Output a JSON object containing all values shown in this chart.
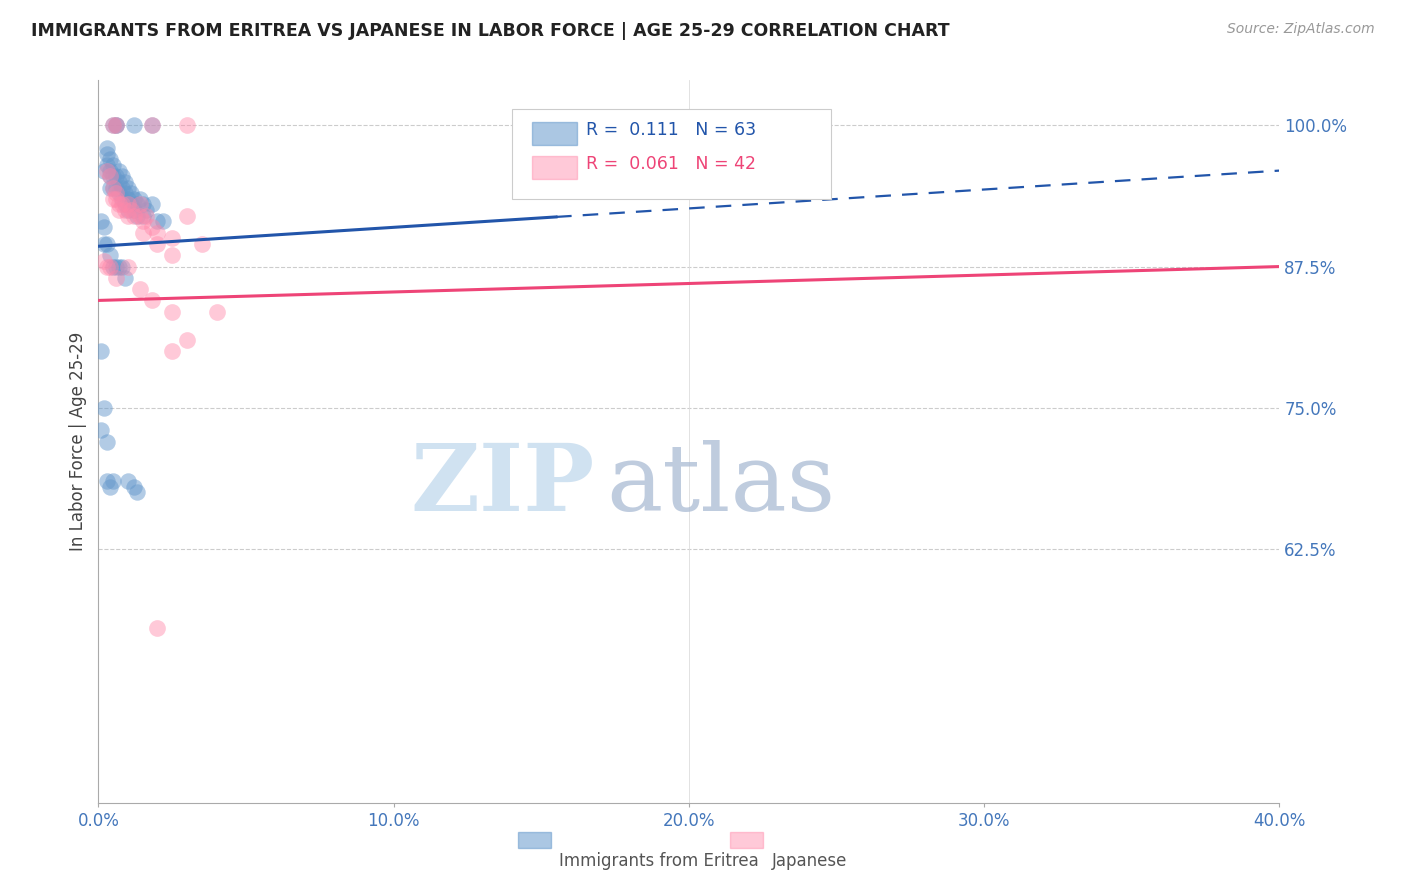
{
  "title": "IMMIGRANTS FROM ERITREA VS JAPANESE IN LABOR FORCE | AGE 25-29 CORRELATION CHART",
  "source": "Source: ZipAtlas.com",
  "ylabel": "In Labor Force | Age 25-29",
  "xlim": [
    0.0,
    0.4
  ],
  "ylim": [
    0.4,
    1.04
  ],
  "yticks": [
    0.625,
    0.75,
    0.875,
    1.0
  ],
  "ytick_labels": [
    "62.5%",
    "75.0%",
    "87.5%",
    "100.0%"
  ],
  "xticks": [
    0.0,
    0.1,
    0.2,
    0.3,
    0.4
  ],
  "xtick_labels": [
    "0.0%",
    "10.0%",
    "20.0%",
    "30.0%",
    "40.0%"
  ],
  "blue_R": 0.111,
  "blue_N": 63,
  "pink_R": 0.061,
  "pink_N": 42,
  "blue_color": "#6699CC",
  "pink_color": "#FF88AA",
  "trend_blue_color": "#2255AA",
  "trend_pink_color": "#EE4477",
  "watermark_zip": "ZIP",
  "watermark_atlas": "atlas",
  "legend_label_blue": "Immigrants from Eritrea",
  "legend_label_pink": "Japanese",
  "blue_trend_x0": 0.0,
  "blue_trend_y0": 0.893,
  "blue_trend_x1": 0.4,
  "blue_trend_y1": 0.96,
  "blue_trend_solid_end": 0.155,
  "pink_trend_x0": 0.0,
  "pink_trend_y0": 0.845,
  "pink_trend_x1": 0.4,
  "pink_trend_y1": 0.875,
  "blue_scatter": [
    [
      0.005,
      1.0
    ],
    [
      0.006,
      1.0
    ],
    [
      0.006,
      1.0
    ],
    [
      0.012,
      1.0
    ],
    [
      0.018,
      1.0
    ],
    [
      0.003,
      0.98
    ],
    [
      0.003,
      0.975
    ],
    [
      0.003,
      0.965
    ],
    [
      0.004,
      0.97
    ],
    [
      0.004,
      0.96
    ],
    [
      0.004,
      0.955
    ],
    [
      0.004,
      0.945
    ],
    [
      0.005,
      0.965
    ],
    [
      0.005,
      0.955
    ],
    [
      0.005,
      0.945
    ],
    [
      0.006,
      0.955
    ],
    [
      0.006,
      0.945
    ],
    [
      0.007,
      0.96
    ],
    [
      0.007,
      0.95
    ],
    [
      0.007,
      0.94
    ],
    [
      0.008,
      0.955
    ],
    [
      0.008,
      0.945
    ],
    [
      0.008,
      0.935
    ],
    [
      0.009,
      0.95
    ],
    [
      0.009,
      0.94
    ],
    [
      0.009,
      0.93
    ],
    [
      0.01,
      0.945
    ],
    [
      0.01,
      0.935
    ],
    [
      0.01,
      0.925
    ],
    [
      0.011,
      0.94
    ],
    [
      0.011,
      0.93
    ],
    [
      0.012,
      0.935
    ],
    [
      0.012,
      0.925
    ],
    [
      0.013,
      0.93
    ],
    [
      0.013,
      0.92
    ],
    [
      0.014,
      0.935
    ],
    [
      0.015,
      0.93
    ],
    [
      0.015,
      0.92
    ],
    [
      0.016,
      0.925
    ],
    [
      0.018,
      0.93
    ],
    [
      0.02,
      0.915
    ],
    [
      0.022,
      0.915
    ],
    [
      0.001,
      0.915
    ],
    [
      0.002,
      0.91
    ],
    [
      0.002,
      0.895
    ],
    [
      0.003,
      0.895
    ],
    [
      0.004,
      0.885
    ],
    [
      0.005,
      0.875
    ],
    [
      0.006,
      0.875
    ],
    [
      0.007,
      0.875
    ],
    [
      0.008,
      0.875
    ],
    [
      0.009,
      0.865
    ],
    [
      0.001,
      0.8
    ],
    [
      0.001,
      0.73
    ],
    [
      0.002,
      0.75
    ],
    [
      0.003,
      0.72
    ],
    [
      0.003,
      0.685
    ],
    [
      0.004,
      0.68
    ],
    [
      0.005,
      0.685
    ],
    [
      0.01,
      0.685
    ],
    [
      0.012,
      0.68
    ],
    [
      0.013,
      0.675
    ],
    [
      0.002,
      0.96
    ]
  ],
  "pink_scatter": [
    [
      0.005,
      1.0
    ],
    [
      0.006,
      1.0
    ],
    [
      0.018,
      1.0
    ],
    [
      0.03,
      1.0
    ],
    [
      0.003,
      0.96
    ],
    [
      0.004,
      0.955
    ],
    [
      0.005,
      0.945
    ],
    [
      0.005,
      0.935
    ],
    [
      0.006,
      0.94
    ],
    [
      0.006,
      0.935
    ],
    [
      0.007,
      0.93
    ],
    [
      0.007,
      0.925
    ],
    [
      0.008,
      0.93
    ],
    [
      0.009,
      0.925
    ],
    [
      0.01,
      0.93
    ],
    [
      0.01,
      0.92
    ],
    [
      0.011,
      0.925
    ],
    [
      0.012,
      0.92
    ],
    [
      0.014,
      0.93
    ],
    [
      0.014,
      0.92
    ],
    [
      0.015,
      0.915
    ],
    [
      0.015,
      0.905
    ],
    [
      0.016,
      0.92
    ],
    [
      0.018,
      0.91
    ],
    [
      0.02,
      0.905
    ],
    [
      0.02,
      0.895
    ],
    [
      0.025,
      0.9
    ],
    [
      0.025,
      0.885
    ],
    [
      0.03,
      0.92
    ],
    [
      0.035,
      0.895
    ],
    [
      0.002,
      0.88
    ],
    [
      0.004,
      0.875
    ],
    [
      0.006,
      0.865
    ],
    [
      0.01,
      0.875
    ],
    [
      0.014,
      0.855
    ],
    [
      0.018,
      0.845
    ],
    [
      0.025,
      0.835
    ],
    [
      0.025,
      0.8
    ],
    [
      0.03,
      0.81
    ],
    [
      0.04,
      0.835
    ],
    [
      0.02,
      0.555
    ],
    [
      0.003,
      0.875
    ]
  ]
}
